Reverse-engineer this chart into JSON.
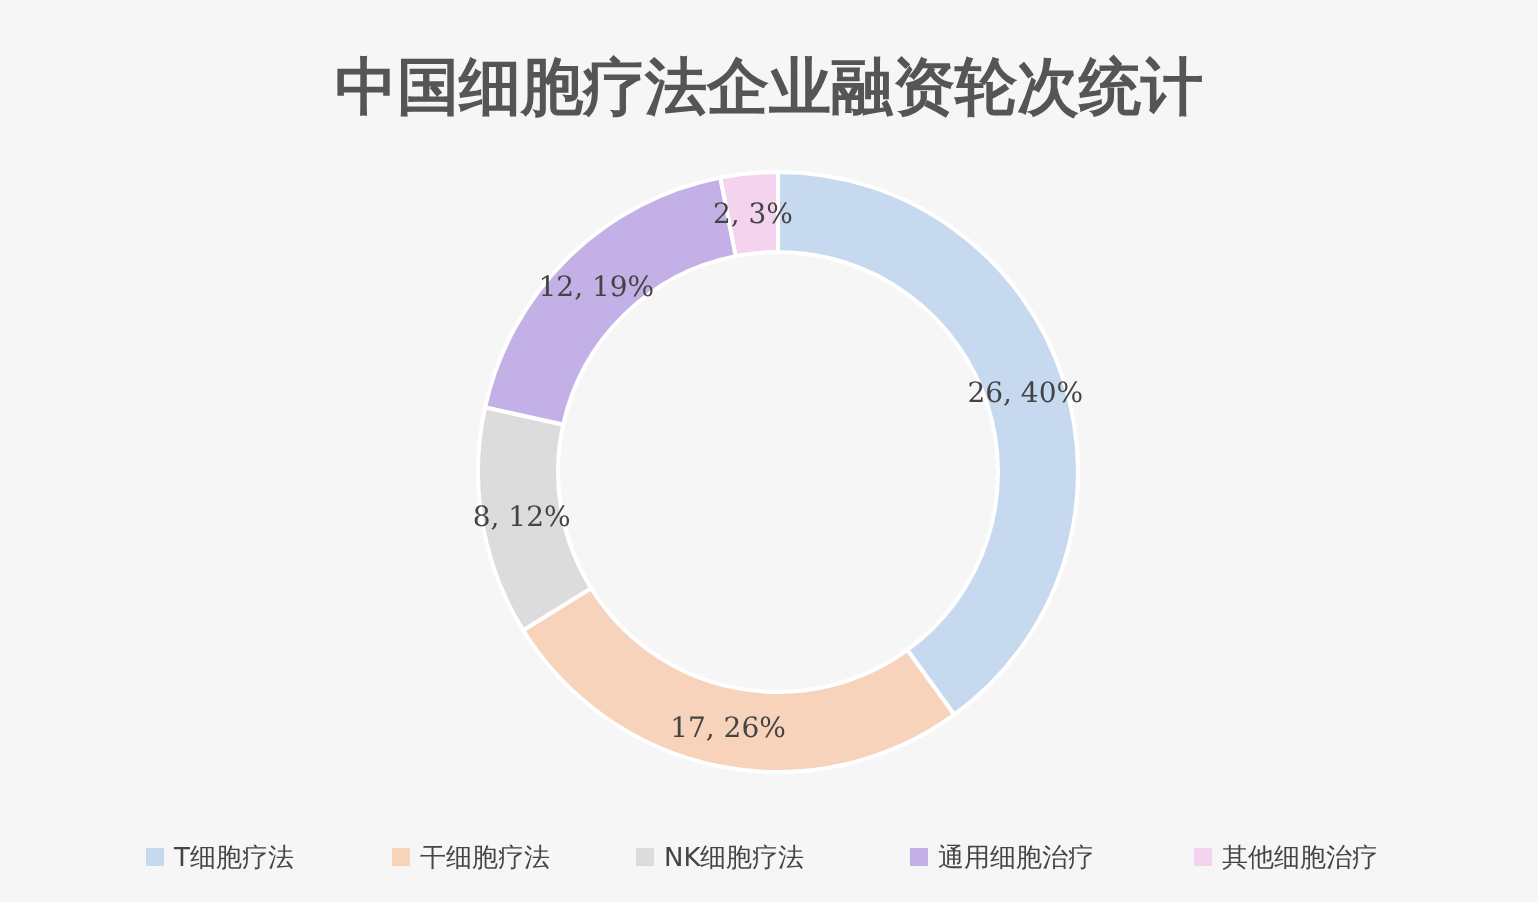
{
  "chart_data": {
    "type": "donut",
    "title": "中国细胞疗法企业融资轮次统计",
    "categories": [
      "T细胞疗法",
      "干细胞疗法",
      "NK细胞疗法",
      "通用细胞治疗",
      "其他细胞治疗"
    ],
    "values": [
      26,
      17,
      8,
      12,
      2
    ],
    "value_labels": [
      "26, 40%",
      "17, 26%",
      "8, 12%",
      "12, 19%",
      "2, 3%"
    ],
    "colors": [
      "#c6d9ee",
      "#f7d3bb",
      "#dcdcdc",
      "#c3b0e6",
      "#f4d3ee"
    ],
    "legend": "bottom"
  }
}
